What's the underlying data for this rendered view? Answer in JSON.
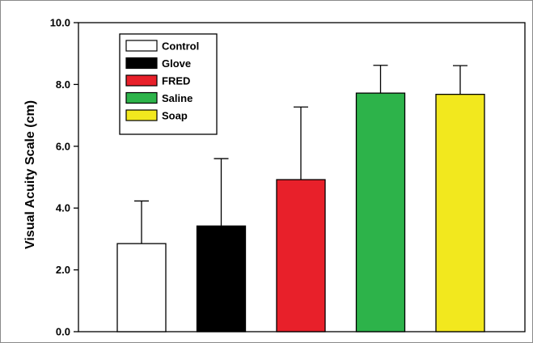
{
  "chart_data": {
    "type": "bar",
    "title": "",
    "xlabel": "",
    "ylabel": "Visual Acuity Scale (cm)",
    "ylim": [
      0,
      10
    ],
    "yticks": [
      "0.0",
      "2.0",
      "4.0",
      "6.0",
      "8.0",
      "10.0"
    ],
    "grid": false,
    "legend_position": "top-left",
    "categories": [
      "Control",
      "Glove",
      "FRED",
      "Saline",
      "Soap"
    ],
    "values": [
      2.85,
      3.42,
      4.92,
      7.72,
      7.68
    ],
    "error_upper": [
      1.38,
      2.18,
      2.35,
      0.9,
      0.93
    ],
    "colors": [
      "#ffffff",
      "#000000",
      "#e8202a",
      "#2db34a",
      "#f2e81e"
    ]
  }
}
